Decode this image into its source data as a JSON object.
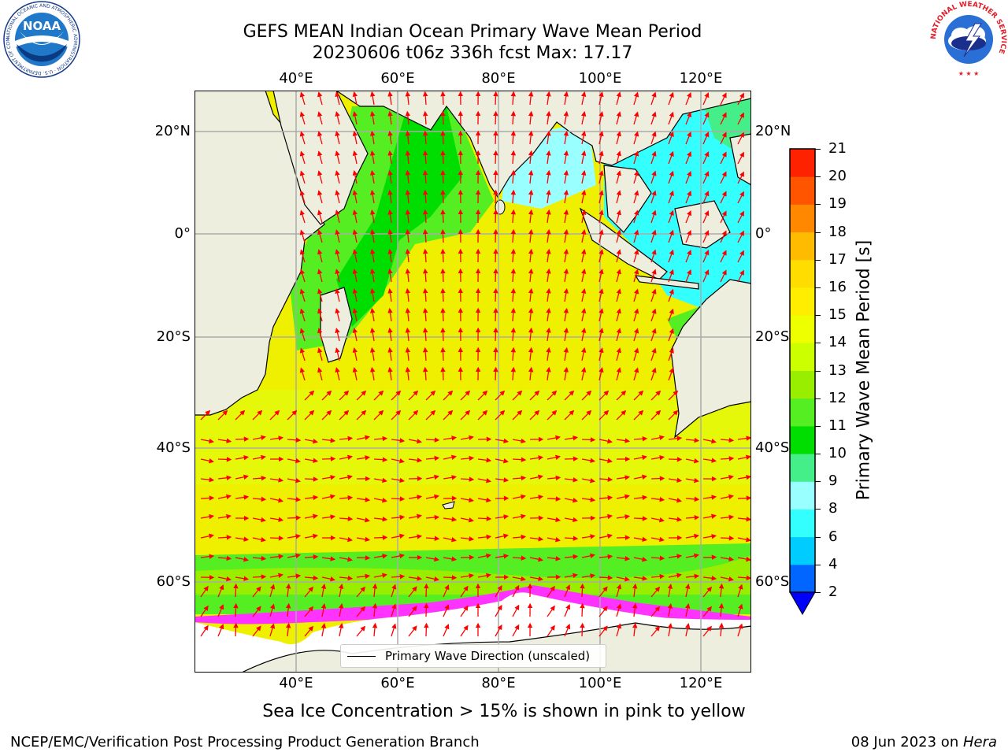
{
  "title": {
    "line1": "GEFS MEAN Indian Ocean Primary Wave Mean Period",
    "line2": "20230606 t06z 336h fcst   Max: 17.17"
  },
  "map": {
    "lon_labels_top": [
      "40°E",
      "60°E",
      "80°E",
      "100°E",
      "120°E"
    ],
    "lon_labels_bottom": [
      "40°E",
      "60°E",
      "80°E",
      "100°E",
      "120°E"
    ],
    "lat_labels_left": [
      "20°N",
      "0°",
      "20°S",
      "40°S",
      "60°S"
    ],
    "lat_labels_right": [
      "20°N",
      "0°",
      "20°S",
      "40°S",
      "60°S"
    ],
    "lon_range": [
      20,
      130
    ],
    "lat_range": [
      -72,
      28
    ],
    "colors": {
      "land": "#eeeedf",
      "ice_free_antarctic": "#ffffff",
      "arrow": "#ff0000",
      "sea_ice": "#ff33ff"
    }
  },
  "legend": {
    "label": "Primary Wave Direction (unscaled)"
  },
  "colorbar": {
    "label": "Primary Wave Mean Period [s]",
    "ticks": [
      "2",
      "4",
      "6",
      "8",
      "9",
      "10",
      "11",
      "12",
      "13",
      "14",
      "15",
      "16",
      "17",
      "18",
      "19",
      "20",
      "21"
    ],
    "colors": [
      "#0066ff",
      "#00ccff",
      "#33ffff",
      "#99ffff",
      "#44ee88",
      "#00dd00",
      "#55ee22",
      "#99ee00",
      "#ccff00",
      "#eeff00",
      "#ffee00",
      "#ffdd00",
      "#ffbb00",
      "#ff8800",
      "#ff5500",
      "#ff2200"
    ],
    "extend_color": "#0000ff"
  },
  "caption": "Sea Ice Concentration > 15% is shown in pink to yellow",
  "footer": {
    "left": "NCEP/EMC/Verification Post Processing Product Generation Branch",
    "right_date": "08 Jun 2023 on ",
    "right_host": "Hera"
  },
  "logos": {
    "noaa": {
      "text": "NOAA",
      "ring_text": "NATIONAL OCEANIC AND ATMOSPHERIC ADMINISTRATION · U.S. DEPARTMENT OF COMMERCE"
    },
    "nws": {
      "ring_text": "NATIONAL WEATHER SERVICE"
    }
  }
}
